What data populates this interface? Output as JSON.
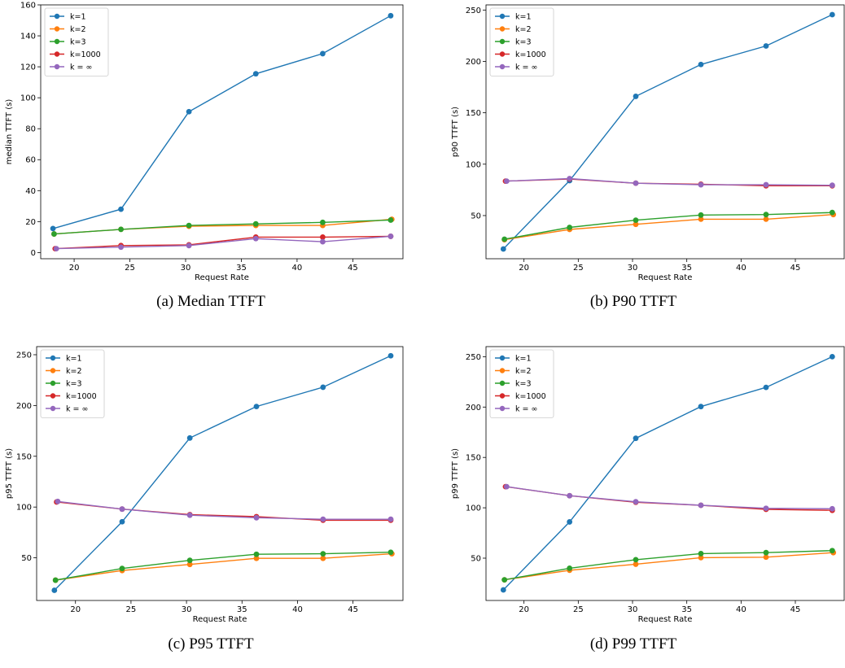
{
  "chart_data": [
    {
      "type": "line",
      "ylabel": "median TTFT (s)",
      "xlabel": "Request Rate",
      "caption": "(a) Median TTFT",
      "xlim": [
        17.0,
        49.5
      ],
      "ylim": [
        -4,
        160
      ],
      "xticks": [
        20,
        25,
        30,
        35,
        40,
        45
      ],
      "yticks": [
        0,
        20,
        40,
        60,
        80,
        100,
        120,
        140,
        160
      ],
      "legend_position": "top-left",
      "grid": false,
      "series": [
        {
          "name": "k=1",
          "color": "#1f77b4",
          "x": [
            18.1,
            24.2,
            30.3,
            36.3,
            42.3,
            48.4
          ],
          "y": [
            15.5,
            28.0,
            91.0,
            115.5,
            128.5,
            153.0
          ]
        },
        {
          "name": "k=2",
          "color": "#ff7f0e",
          "x": [
            18.2,
            24.2,
            30.3,
            36.3,
            42.3,
            48.5
          ],
          "y": [
            12.0,
            15.0,
            17.0,
            17.5,
            17.5,
            21.5
          ]
        },
        {
          "name": "k=3",
          "color": "#2ca02c",
          "x": [
            18.2,
            24.2,
            30.3,
            36.3,
            42.3,
            48.4
          ],
          "y": [
            12.0,
            15.0,
            17.5,
            18.5,
            19.5,
            21.0
          ]
        },
        {
          "name": "k=1000",
          "color": "#d62728",
          "x": [
            18.3,
            24.2,
            30.3,
            36.3,
            42.3,
            48.4
          ],
          "y": [
            2.5,
            4.5,
            5.0,
            10.0,
            10.0,
            10.5
          ]
        },
        {
          "name": "k = ∞",
          "color": "#9467bd",
          "x": [
            18.4,
            24.2,
            30.3,
            36.3,
            42.3,
            48.4
          ],
          "y": [
            2.5,
            3.5,
            4.5,
            9.0,
            7.0,
            10.5
          ]
        }
      ]
    },
    {
      "type": "line",
      "ylabel": "p90 TTFT (s)",
      "xlabel": "Request Rate",
      "caption": "(b) P90 TTFT",
      "xlim": [
        16.5,
        49.5
      ],
      "ylim": [
        8,
        255
      ],
      "xticks": [
        20,
        25,
        30,
        35,
        40,
        45
      ],
      "yticks": [
        50,
        100,
        150,
        200,
        250
      ],
      "legend_position": "top-left",
      "grid": false,
      "series": [
        {
          "name": "k=1",
          "color": "#1f77b4",
          "x": [
            18.1,
            24.2,
            30.3,
            36.3,
            42.3,
            48.4
          ],
          "y": [
            17.5,
            84.0,
            166.0,
            197.0,
            215.0,
            245.5
          ]
        },
        {
          "name": "k=2",
          "color": "#ff7f0e",
          "x": [
            18.2,
            24.2,
            30.3,
            36.3,
            42.3,
            48.5
          ],
          "y": [
            26.5,
            36.5,
            41.5,
            46.5,
            46.5,
            51.0
          ]
        },
        {
          "name": "k=3",
          "color": "#2ca02c",
          "x": [
            18.2,
            24.2,
            30.3,
            36.3,
            42.3,
            48.4
          ],
          "y": [
            27.0,
            38.5,
            45.5,
            50.5,
            51.0,
            53.0
          ]
        },
        {
          "name": "k=1000",
          "color": "#d62728",
          "x": [
            18.3,
            24.2,
            30.3,
            36.3,
            42.3,
            48.4
          ],
          "y": [
            83.5,
            85.5,
            81.5,
            80.5,
            79.0,
            79.0
          ]
        },
        {
          "name": "k = ∞",
          "color": "#9467bd",
          "x": [
            18.4,
            24.2,
            30.3,
            36.3,
            42.3,
            48.4
          ],
          "y": [
            83.5,
            86.0,
            81.5,
            80.0,
            80.0,
            79.5
          ]
        }
      ]
    },
    {
      "type": "line",
      "ylabel": "p95 TTFT (s)",
      "xlabel": "Request Rate",
      "caption": "(c) P95 TTFT",
      "xlim": [
        16.5,
        49.5
      ],
      "ylim": [
        8,
        258
      ],
      "xticks": [
        20,
        25,
        30,
        35,
        40,
        45
      ],
      "yticks": [
        50,
        100,
        150,
        200,
        250
      ],
      "legend_position": "top-left",
      "grid": false,
      "series": [
        {
          "name": "k=1",
          "color": "#1f77b4",
          "x": [
            18.1,
            24.2,
            30.3,
            36.3,
            42.3,
            48.4
          ],
          "y": [
            18.0,
            85.5,
            168.0,
            199.0,
            218.0,
            249.0
          ]
        },
        {
          "name": "k=2",
          "color": "#ff7f0e",
          "x": [
            18.2,
            24.2,
            30.3,
            36.3,
            42.3,
            48.5
          ],
          "y": [
            28.0,
            37.5,
            43.5,
            49.5,
            49.5,
            54.0
          ]
        },
        {
          "name": "k=3",
          "color": "#2ca02c",
          "x": [
            18.2,
            24.2,
            30.3,
            36.3,
            42.3,
            48.4
          ],
          "y": [
            28.0,
            39.5,
            47.5,
            53.5,
            54.0,
            55.5
          ]
        },
        {
          "name": "k=1000",
          "color": "#d62728",
          "x": [
            18.3,
            24.2,
            30.3,
            36.3,
            42.3,
            48.4
          ],
          "y": [
            105.0,
            98.0,
            92.5,
            90.5,
            87.0,
            87.0
          ]
        },
        {
          "name": "k = ∞",
          "color": "#9467bd",
          "x": [
            18.4,
            24.2,
            30.3,
            36.3,
            42.3,
            48.4
          ],
          "y": [
            105.5,
            98.0,
            92.0,
            89.5,
            88.0,
            88.0
          ]
        }
      ]
    },
    {
      "type": "line",
      "ylabel": "p99 TTFT (s)",
      "xlabel": "Request Rate",
      "caption": "(d) P99 TTFT",
      "xlim": [
        16.5,
        49.5
      ],
      "ylim": [
        8,
        260
      ],
      "xticks": [
        20,
        25,
        30,
        35,
        40,
        45
      ],
      "yticks": [
        50,
        100,
        150,
        200,
        250
      ],
      "legend_position": "top-left",
      "grid": false,
      "series": [
        {
          "name": "k=1",
          "color": "#1f77b4",
          "x": [
            18.1,
            24.2,
            30.3,
            36.3,
            42.3,
            48.4
          ],
          "y": [
            18.5,
            86.0,
            169.0,
            200.5,
            219.5,
            250.0
          ]
        },
        {
          "name": "k=2",
          "color": "#ff7f0e",
          "x": [
            18.2,
            24.2,
            30.3,
            36.3,
            42.3,
            48.5
          ],
          "y": [
            28.5,
            38.0,
            44.0,
            50.5,
            51.0,
            55.5
          ]
        },
        {
          "name": "k=3",
          "color": "#2ca02c",
          "x": [
            18.2,
            24.2,
            30.3,
            36.3,
            42.3,
            48.4
          ],
          "y": [
            28.5,
            40.0,
            48.5,
            54.5,
            55.5,
            57.5
          ]
        },
        {
          "name": "k=1000",
          "color": "#d62728",
          "x": [
            18.3,
            24.2,
            30.3,
            36.3,
            42.3,
            48.4
          ],
          "y": [
            121.0,
            112.0,
            105.5,
            102.5,
            98.5,
            97.5
          ]
        },
        {
          "name": "k = ∞",
          "color": "#9467bd",
          "x": [
            18.4,
            24.2,
            30.3,
            36.3,
            42.3,
            48.4
          ],
          "y": [
            121.0,
            112.0,
            106.0,
            102.5,
            99.5,
            99.0
          ]
        }
      ]
    }
  ]
}
